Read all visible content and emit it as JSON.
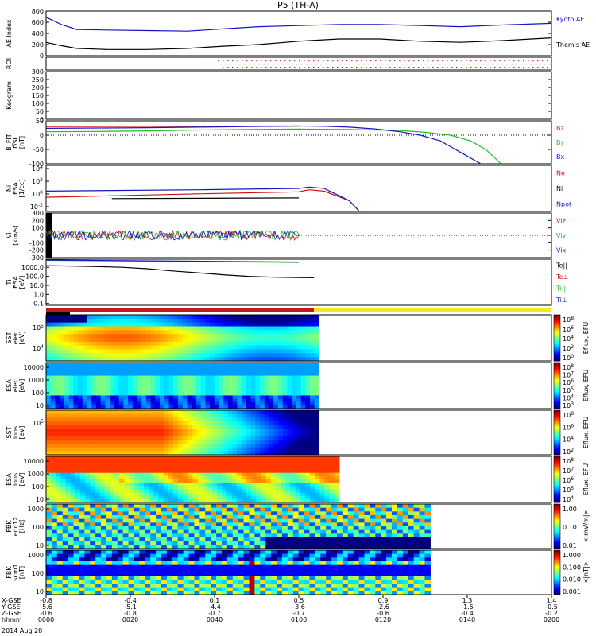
{
  "title": "P5 (TH-A)",
  "date_label": "2014 Aug 28",
  "colors": {
    "blue": "#1515c8",
    "black": "#000000",
    "red": "#cc1111",
    "green": "#22bb22",
    "yellow": "#f2e81b",
    "darkred": "#c21818"
  },
  "chart_data": [
    {
      "type": "line",
      "panel": "ae",
      "ylabel": "AE Index",
      "ylim": [
        0,
        800
      ],
      "yticks": [
        "0",
        "200",
        "400",
        "600",
        "800"
      ],
      "series": [
        {
          "name": "Kyoto AE",
          "color": "#1515c8",
          "x": [
            0,
            0.03,
            0.06,
            0.12,
            0.2,
            0.28,
            0.35,
            0.42,
            0.5,
            0.58,
            0.66,
            0.74,
            0.82,
            0.9,
            1.0
          ],
          "y": [
            690,
            560,
            470,
            460,
            450,
            440,
            480,
            520,
            540,
            560,
            560,
            540,
            520,
            550,
            580
          ]
        },
        {
          "name": "Themis AE",
          "color": "#000000",
          "x": [
            0,
            0.03,
            0.06,
            0.12,
            0.2,
            0.28,
            0.35,
            0.42,
            0.5,
            0.58,
            0.66,
            0.74,
            0.82,
            0.9,
            1.0
          ],
          "y": [
            240,
            180,
            130,
            110,
            110,
            130,
            170,
            200,
            260,
            300,
            300,
            260,
            240,
            270,
            320
          ]
        }
      ]
    },
    {
      "type": "scatter",
      "panel": "roi",
      "ylabel": "ROI",
      "note_x_start": 0.34
    },
    {
      "type": "line",
      "panel": "keogram",
      "ylabel": "Keogram",
      "ylim": [
        0,
        300
      ],
      "yticks": [
        "0",
        "50",
        "100",
        "150",
        "200",
        "250",
        "300"
      ]
    },
    {
      "type": "line",
      "panel": "bfit",
      "ylabel": "B_FIT DSL [nT]",
      "ylim": [
        -100,
        50
      ],
      "yticks": [
        "-100",
        "-50",
        "0",
        "50"
      ],
      "series": [
        {
          "name": "Bz",
          "color": "#cc1111",
          "x": [
            0.0,
            0.5
          ],
          "y": [
            30,
            32
          ]
        },
        {
          "name": "By",
          "color": "#22bb22",
          "x": [
            0,
            0.1,
            0.2,
            0.3,
            0.4,
            0.5,
            0.6,
            0.7,
            0.75,
            0.8,
            0.84,
            0.87,
            0.9
          ],
          "y": [
            12,
            13,
            15,
            18,
            20,
            21,
            20,
            16,
            10,
            0,
            -20,
            -50,
            -100
          ]
        },
        {
          "name": "Bx",
          "color": "#1515c8",
          "x": [
            0,
            0.1,
            0.2,
            0.3,
            0.4,
            0.5,
            0.55,
            0.6,
            0.65,
            0.7,
            0.74,
            0.78,
            0.8,
            0.83,
            0.86
          ],
          "y": [
            24,
            25,
            26,
            28,
            30,
            32,
            31,
            28,
            22,
            12,
            0,
            -20,
            -40,
            -70,
            -100
          ]
        }
      ]
    },
    {
      "type": "line",
      "panel": "ni",
      "ylabel": "Ni",
      "units": "[1/cc]",
      "log_y": true,
      "ytick_exponents": [
        "-2",
        "0",
        "2",
        "4"
      ],
      "series": [
        {
          "name": "Ne",
          "color": "#cc1111",
          "x": [
            0,
            0.3,
            0.5,
            0.52,
            0.55,
            0.6,
            0.62
          ],
          "y": [
            -0.5,
            0,
            0.3,
            0.6,
            0.4,
            -1.0,
            -3
          ]
        },
        {
          "name": "Ni",
          "color": "#000000",
          "x": [
            0.13,
            0.5
          ],
          "y": [
            -0.7,
            -0.6
          ]
        },
        {
          "name": "Npot",
          "color": "#1515c8",
          "x": [
            0,
            0.3,
            0.5,
            0.52,
            0.55,
            0.6,
            0.62
          ],
          "y": [
            0.4,
            0.6,
            0.8,
            1.0,
            0.8,
            -1.0,
            -3
          ]
        }
      ]
    },
    {
      "type": "line",
      "panel": "vi",
      "ylabel": "Vi",
      "units": "[km/s]",
      "ylim": [
        -300,
        300
      ],
      "yticks": [
        "-300",
        "-200",
        "-100",
        "0",
        "100",
        "200",
        "300"
      ],
      "series": [
        {
          "name": "Viz",
          "color": "#cc1111"
        },
        {
          "name": "Viy",
          "color": "#22bb22"
        },
        {
          "name": "Vix",
          "color": "#1515c8"
        }
      ]
    },
    {
      "type": "line",
      "panel": "ti",
      "ylabel": "Ti",
      "units": "[eV]",
      "log_y": true,
      "yticks": [
        "0.1",
        "1.0",
        "10.0",
        "100.0",
        "1000.0"
      ],
      "series": [
        {
          "name": "Te||",
          "color": "#000000",
          "x": [
            0,
            0.05,
            0.1,
            0.15,
            0.2,
            0.25,
            0.3,
            0.35,
            0.4,
            0.45,
            0.53
          ],
          "y": [
            1500,
            1400,
            1200,
            1000,
            700,
            400,
            250,
            150,
            100,
            80,
            70
          ]
        },
        {
          "name": "Te⊥",
          "color": "#cc1111"
        },
        {
          "name": "Ti||",
          "color": "#22bb22",
          "x": [
            0.0,
            0.5
          ],
          "y": [
            6000,
            3500
          ]
        },
        {
          "name": "Ti⊥",
          "color": "#1515c8",
          "x": [
            0.0,
            0.5
          ],
          "y": [
            6500,
            3800
          ]
        }
      ]
    },
    {
      "type": "heatmap",
      "panel": "sst_e",
      "ylabel": "SST",
      "units": "[eV]",
      "ytick_exponents": [
        "5",
        "4"
      ],
      "cbar_label": "Eflux, EFU",
      "cbar_ticks_exp": [
        "8",
        "6",
        "4",
        "2",
        "0"
      ],
      "data_end_x": 0.54
    },
    {
      "type": "heatmap",
      "panel": "esa_e",
      "ylabel": "ESA",
      "units": "[eV]",
      "yticks": [
        "10",
        "100",
        "1000",
        "10000"
      ],
      "cbar_label": "Eflux, EFU",
      "cbar_ticks_exp": [
        "8",
        "7",
        "6",
        "5",
        "4",
        "3"
      ],
      "data_end_x": 0.54
    },
    {
      "type": "heatmap",
      "panel": "sst_i",
      "ylabel": "SST",
      "units": "[eV]",
      "ytick_exponents": [
        "5"
      ],
      "cbar_label": "Eflux, EFU",
      "cbar_ticks_exp": [
        "8",
        "6",
        "4",
        "2"
      ],
      "data_end_x": 0.54
    },
    {
      "type": "heatmap",
      "panel": "esa_i",
      "ylabel": "ESA",
      "units": "[eV]",
      "yticks": [
        "10",
        "100",
        "1000",
        "10000"
      ],
      "cbar_label": "Eflux, EFU",
      "cbar_ticks_exp": [
        "8",
        "7",
        "6",
        "5",
        "4"
      ],
      "data_end_x": 0.58
    },
    {
      "type": "heatmap",
      "panel": "fbk_e",
      "ylabel": "FBK",
      "units": "[Hz]",
      "yticks": [
        "10",
        "100",
        "1000"
      ],
      "cbar_label": "<|mV/m|>",
      "cbar_ticks": [
        "1.00",
        "0.10",
        "0.01"
      ],
      "data_end_x": 0.76
    },
    {
      "type": "heatmap",
      "panel": "fbk_b",
      "ylabel": "FBK",
      "units": "[Hz]",
      "yticks": [
        "10",
        "100",
        "1000"
      ],
      "cbar_label": "<|nT|>",
      "cbar_ticks": [
        "1.000",
        "0.100",
        "0.010",
        "0.001"
      ],
      "data_end_x": 0.76
    }
  ],
  "time_axis": {
    "row_labels": [
      "X-GSE",
      "Y-GSE",
      "Z-GSE",
      "hhmm"
    ],
    "columns": [
      {
        "x": "-0.8",
        "y": "-5.6",
        "z": "-0.6",
        "t": "0000"
      },
      {
        "x": "-0.4",
        "y": "-5.1",
        "z": "-0.8",
        "t": "0020"
      },
      {
        "x": "0.1",
        "y": "-4.4",
        "z": "-0.7",
        "t": "0040"
      },
      {
        "x": "0.5",
        "y": "-3.6",
        "z": "-0.7",
        "t": "0100"
      },
      {
        "x": "0.9",
        "y": "-2.6",
        "z": "-0.6",
        "t": "0120"
      },
      {
        "x": "1.3",
        "y": "-1.5",
        "z": "-0.4",
        "t": "0140"
      },
      {
        "x": "1.4",
        "y": "-0.5",
        "z": "-0.2",
        "t": "0200"
      }
    ]
  },
  "mode_bar": {
    "red_end_fraction": 0.53
  }
}
